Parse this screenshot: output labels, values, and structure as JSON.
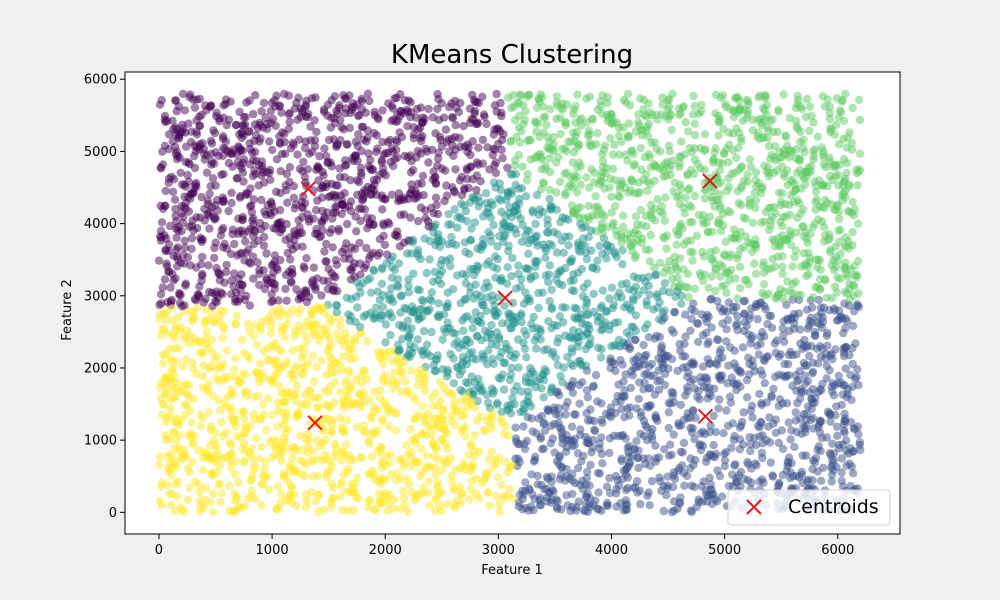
{
  "chart_data": {
    "type": "scatter",
    "title": "KMeans Clustering",
    "xlabel": "Feature 1",
    "ylabel": "Feature 2",
    "xlim": [
      -300,
      6550
    ],
    "ylim": [
      -300,
      6100
    ],
    "xticks": [
      0,
      1000,
      2000,
      3000,
      4000,
      5000,
      6000
    ],
    "yticks": [
      0,
      1000,
      2000,
      3000,
      4000,
      5000,
      6000
    ],
    "grid": false,
    "legend": {
      "placement": "bottom-right",
      "entries": [
        "Centroids"
      ]
    },
    "point_alpha": 0.5,
    "clusters": [
      {
        "color": "#440154",
        "centroid": [
          1320,
          4480
        ]
      },
      {
        "color": "#3b528b",
        "centroid": [
          4830,
          1330
        ]
      },
      {
        "color": "#21918c",
        "centroid": [
          3060,
          2970
        ]
      },
      {
        "color": "#5ec962",
        "centroid": [
          4870,
          4590
        ]
      },
      {
        "color": "#fde725",
        "centroid": [
          1380,
          1240
        ]
      }
    ],
    "data_extent": {
      "x": [
        0,
        6200
      ],
      "y": [
        0,
        5800
      ]
    },
    "approx_point_count": 5000,
    "centroids_series": {
      "name": "Centroids",
      "marker": "x",
      "color": "#e31a1c",
      "points": [
        [
          1320,
          4480
        ],
        [
          4830,
          1330
        ],
        [
          3060,
          2970
        ],
        [
          4870,
          4590
        ],
        [
          1380,
          1240
        ]
      ]
    }
  }
}
